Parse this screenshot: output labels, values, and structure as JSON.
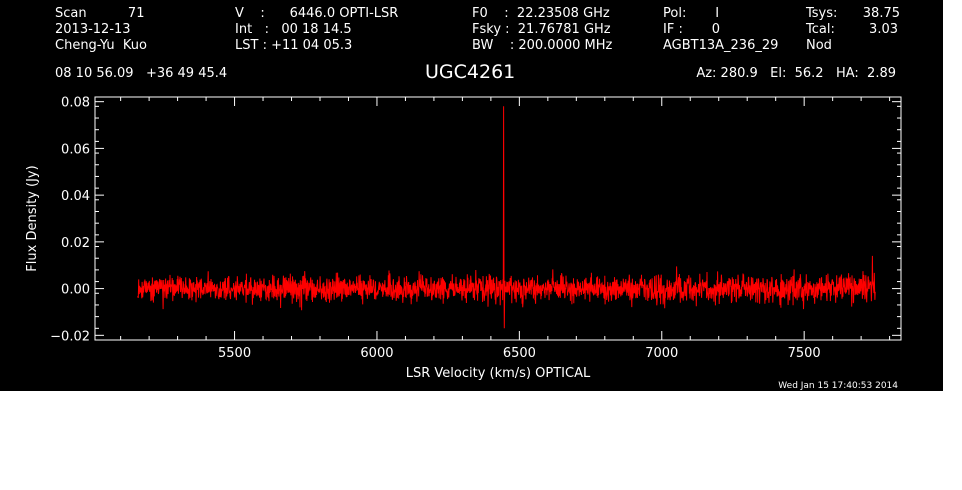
{
  "header": {
    "col1": [
      "Scan          71",
      "2013-12-13",
      "Cheng-Yu  Kuo"
    ],
    "col2": [
      "V    :      6446.0 OPTI-LSR",
      "Int   :   00 18 14.5",
      "LST : +11 04 05.3"
    ],
    "col3": [
      "F0    :  22.23508 GHz",
      "Fsky :  21.76781 GHz",
      "BW    : 200.0000 MHz"
    ],
    "col4": [
      "Pol:       I",
      "IF :       0",
      "AGBT13A_236_29"
    ],
    "col5": [
      "Tsys:",
      "Tcal:",
      "Nod"
    ],
    "col6": [
      "38.75",
      "3.03"
    ],
    "coords": "08 10 56.09   +36 49 45.4",
    "source": "UGC4261",
    "azel": "Az: 280.9   El:  56.2   HA:  2.89"
  },
  "footer": {
    "date": "Wed Jan 15 17:40:53 2014"
  },
  "colors": {
    "background": "#000000",
    "axes": "#ffffff",
    "spectrum": "#ff0000"
  },
  "chart_data": {
    "type": "line",
    "title": "UGC4261",
    "xlabel": "LSR Velocity (km/s) OPTICAL",
    "ylabel": "Flux Density (Jy)",
    "xlim": [
      5010,
      7840
    ],
    "ylim": [
      -0.022,
      0.082
    ],
    "xticks": [
      5500,
      6000,
      6500,
      7000,
      7500
    ],
    "xtick_labels": [
      "5500",
      "6000",
      "6500",
      "7000",
      "7500"
    ],
    "yticks": [
      -0.02,
      0.0,
      0.02,
      0.04,
      0.06,
      0.08
    ],
    "ytick_labels": [
      "−0.02",
      "0.00",
      "0.02",
      "0.04",
      "0.06",
      "0.08"
    ],
    "grid": false,
    "legend": "none",
    "series": [
      {
        "x_start": 5160,
        "x_end": 7750,
        "baseline": 0.0,
        "noise_rms": 0.004,
        "noise_peak": 0.012,
        "features": [
          {
            "x": 6445,
            "y": 0.078,
            "kind": "narrow-line"
          },
          {
            "x": 6447,
            "y": -0.017,
            "kind": "dip"
          },
          {
            "x": 7740,
            "y": 0.014,
            "kind": "edge-spike"
          }
        ]
      }
    ]
  }
}
